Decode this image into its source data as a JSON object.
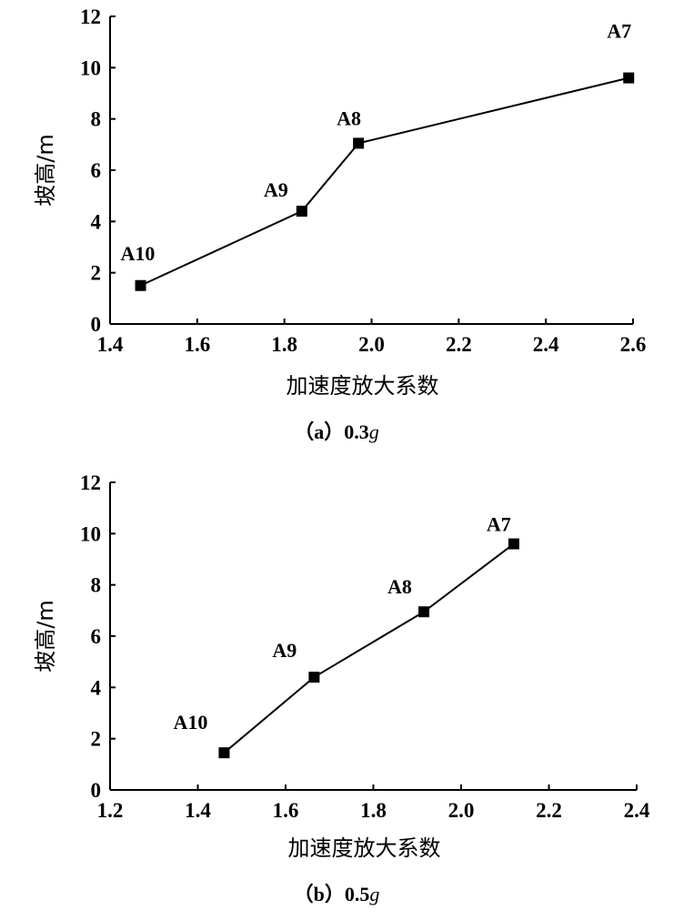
{
  "chart_data": [
    {
      "type": "line",
      "caption_prefix": "（a）0.3",
      "caption_g": "g",
      "xlabel": "加速度放大系数",
      "ylabel": "坡高/m",
      "xlim": [
        1.4,
        2.6
      ],
      "ylim": [
        0,
        12
      ],
      "xticks": [
        "1.4",
        "1.6",
        "1.8",
        "2.0",
        "2.2",
        "2.4",
        "2.6"
      ],
      "yticks": [
        "0",
        "2",
        "4",
        "6",
        "8",
        "10",
        "12"
      ],
      "points": [
        {
          "label": "A10",
          "x": 1.47,
          "y": 1.5
        },
        {
          "label": "A9",
          "x": 1.84,
          "y": 4.4
        },
        {
          "label": "A8",
          "x": 1.97,
          "y": 7.05
        },
        {
          "label": "A7",
          "x": 2.59,
          "y": 9.6
        }
      ]
    },
    {
      "type": "line",
      "caption_prefix": "（b）0.5",
      "caption_g": "g",
      "xlabel": "加速度放大系数",
      "ylabel": "坡高/m",
      "xlim": [
        1.2,
        2.4
      ],
      "ylim": [
        0,
        12
      ],
      "xticks": [
        "1.2",
        "1.4",
        "1.6",
        "1.8",
        "2.0",
        "2.2",
        "2.4"
      ],
      "yticks": [
        "0",
        "2",
        "4",
        "6",
        "8",
        "10",
        "12"
      ],
      "points": [
        {
          "label": "A10",
          "x": 1.46,
          "y": 1.45
        },
        {
          "label": "A9",
          "x": 1.665,
          "y": 4.4
        },
        {
          "label": "A8",
          "x": 1.915,
          "y": 6.95
        },
        {
          "label": "A7",
          "x": 2.12,
          "y": 9.6
        }
      ]
    }
  ]
}
